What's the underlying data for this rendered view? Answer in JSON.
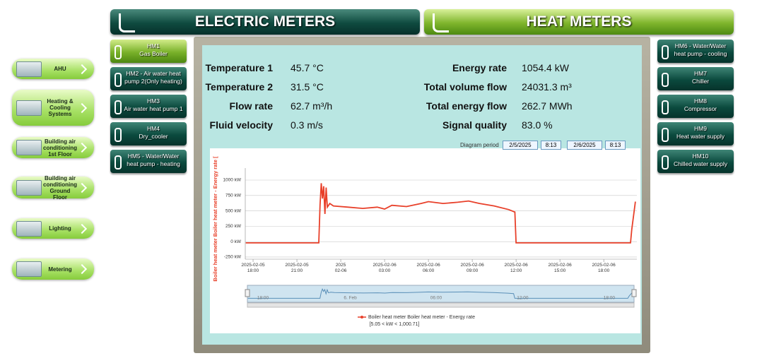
{
  "tabs": [
    "ELECTRIC METERS",
    "HEAT METERS"
  ],
  "nav": [
    "AHU",
    "Heating & Cooling Systems",
    "Building air conditioning 1st Floor",
    "Building air conditioning Ground Floor",
    "Lighting",
    "Metering"
  ],
  "meters_left": [
    {
      "id": "HM1",
      "label": "Gas Boiler"
    },
    {
      "id": "HM2 - Air water heat",
      "label": "pump 2(Only heating)"
    },
    {
      "id": "HM3",
      "label": "Air water heat pump 1"
    },
    {
      "id": "HM4",
      "label": "Dry_cooler"
    },
    {
      "id": "HM5 - Water/Water",
      "label": "heat pump - heating"
    }
  ],
  "meters_right": [
    {
      "id": "HM6 - Water/Water",
      "label": "heat pump - cooling"
    },
    {
      "id": "HM7",
      "label": "Chiller"
    },
    {
      "id": "HM8",
      "label": "Compressor"
    },
    {
      "id": "HM9",
      "label": "Heat water supply"
    },
    {
      "id": "HM10",
      "label": "Chilled water supply"
    }
  ],
  "readings_left": [
    {
      "label": "Temperature 1",
      "value": "45.7 °C"
    },
    {
      "label": "Temperature 2",
      "value": "31.5 °C"
    },
    {
      "label": "Flow rate",
      "value": "62.7 m³/h"
    },
    {
      "label": "Fluid velocity",
      "value": "0.3 m/s"
    }
  ],
  "readings_right": [
    {
      "label": "Energy rate",
      "value": "1054.4 kW"
    },
    {
      "label": "Total volume flow",
      "value": "24031.3 m³"
    },
    {
      "label": "Total energy flow",
      "value": "262.7 MWh"
    },
    {
      "label": "Signal quality",
      "value": "83.0  %"
    }
  ],
  "diagram_period": {
    "label": "Diagram period",
    "from_date": "2/5/2025",
    "from_time": "8:13",
    "to_date": "2/6/2025",
    "to_time": "8:13"
  },
  "chart_data": {
    "type": "line",
    "y_label": "Boiler heat meter Boiler heat meter - Energy rate [",
    "series_name": "Boiler heat meter Boiler heat meter - Energy rate",
    "range_note": "[5.05 < kW < 1,000.71]",
    "color": "#e8402a",
    "x": [
      "2025-02-05T17:30",
      "2025-02-05T22:30",
      "2025-02-05T22:35",
      "2025-02-05T22:40",
      "2025-02-05T22:45",
      "2025-02-05T22:50",
      "2025-02-05T22:55",
      "2025-02-05T23:00",
      "2025-02-05T23:05",
      "2025-02-05T23:15",
      "2025-02-05T23:30",
      "2025-02-06T00:30",
      "2025-02-06T01:30",
      "2025-02-06T02:30",
      "2025-02-06T03:00",
      "2025-02-06T03:30",
      "2025-02-06T04:30",
      "2025-02-06T05:30",
      "2025-02-06T06:00",
      "2025-02-06T07:00",
      "2025-02-06T08:00",
      "2025-02-06T08:45",
      "2025-02-06T09:30",
      "2025-02-06T10:30",
      "2025-02-06T11:30",
      "2025-02-06T11:55",
      "2025-02-06T12:00",
      "2025-02-06T19:50",
      "2025-02-06T19:55",
      "2025-02-06T20:05",
      "2025-02-06T20:10"
    ],
    "values": [
      -20,
      -20,
      600,
      950,
      700,
      900,
      450,
      880,
      560,
      620,
      580,
      560,
      540,
      560,
      530,
      590,
      570,
      620,
      650,
      620,
      640,
      660,
      620,
      580,
      520,
      480,
      -20,
      -20,
      200,
      500,
      650
    ],
    "xlim": [
      "2025-02-05T17:28",
      "2025-02-06T20:16"
    ],
    "xticks": [
      {
        "value": "2025-02-05T18:00",
        "label": "2025-02-05\n18:00"
      },
      {
        "value": "2025-02-05T21:00",
        "label": "2025-02-05\n21:00"
      },
      {
        "value": "2025-02-06T00:00",
        "label": "2025\n02-06"
      },
      {
        "value": "2025-02-06T03:00",
        "label": "2025-02-06\n03:00"
      },
      {
        "value": "2025-02-06T06:00",
        "label": "2025-02-06\n06:00"
      },
      {
        "value": "2025-02-06T09:00",
        "label": "2025-02-06\n09:00"
      },
      {
        "value": "2025-02-06T12:00",
        "label": "2025-02-06\n12:00"
      },
      {
        "value": "2025-02-06T15:00",
        "label": "2025-02-06\n15:00"
      },
      {
        "value": "2025-02-06T18:00",
        "label": "2025-02-06\n18:00"
      }
    ],
    "ylim": [
      -285,
      1195
    ],
    "yticks": [
      {
        "value": -250,
        "label": "-250 kW"
      },
      {
        "value": 0,
        "label": "0 kW"
      },
      {
        "value": 250,
        "label": "250 kW"
      },
      {
        "value": 500,
        "label": "500 kW"
      },
      {
        "value": 750,
        "label": "750 kW"
      },
      {
        "value": 1000,
        "label": "1000 kW"
      }
    ],
    "grid": true,
    "navigator_labels": [
      {
        "value": "2025-02-05T18:00",
        "label": "18:00"
      },
      {
        "value": "2025-02-06T00:00",
        "label": "6. Feb"
      },
      {
        "value": "2025-02-06T06:00",
        "label": "06:00"
      },
      {
        "value": "2025-02-06T12:00",
        "label": "12:00"
      },
      {
        "value": "2025-02-06T18:00",
        "label": "18:00"
      }
    ]
  }
}
